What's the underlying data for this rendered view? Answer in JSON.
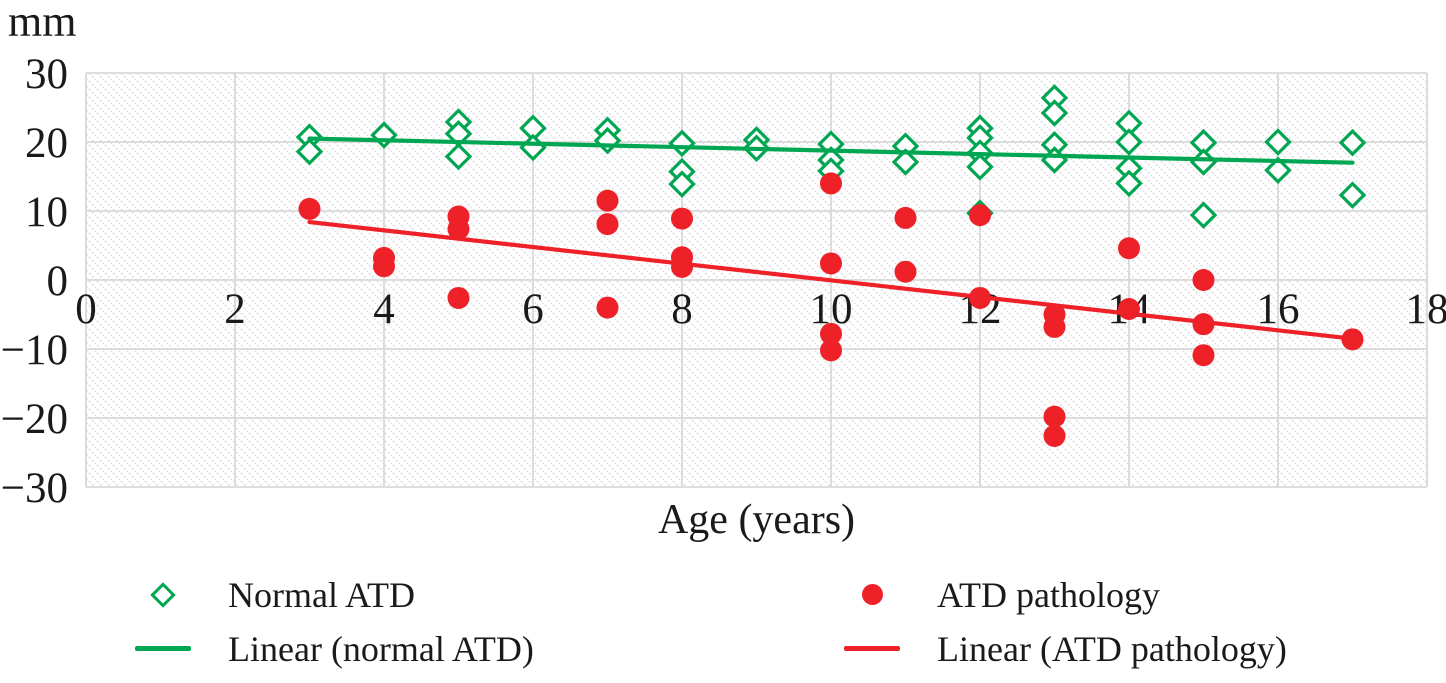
{
  "y_unit_label": "mm",
  "x_axis_title": "Age (years)",
  "chart_data": {
    "type": "scatter",
    "title": "",
    "xlabel": "Age (years)",
    "ylabel": "mm",
    "xlim": [
      0,
      18
    ],
    "ylim": [
      -30,
      30
    ],
    "x_ticks": [
      0,
      2,
      4,
      6,
      8,
      10,
      12,
      14,
      16,
      18
    ],
    "y_ticks": [
      30,
      20,
      10,
      0,
      -10,
      -20,
      -30
    ],
    "grid": true,
    "plot_background": "diagonal-hatch",
    "gridline_color": "#d9d9d9",
    "hatch_color": "#e3e3e3",
    "legend_position": "bottom",
    "series": [
      {
        "name": "Normal ATD",
        "marker": "open-diamond",
        "color": "#00a651",
        "points": [
          [
            3,
            20.7
          ],
          [
            3,
            18.6
          ],
          [
            4,
            21.0
          ],
          [
            5,
            22.9
          ],
          [
            5,
            21.2
          ],
          [
            5,
            17.9
          ],
          [
            6,
            22.0
          ],
          [
            6,
            19.2
          ],
          [
            7,
            21.7
          ],
          [
            7,
            20.2
          ],
          [
            8,
            19.8
          ],
          [
            8,
            15.7
          ],
          [
            8,
            13.9
          ],
          [
            9,
            20.3
          ],
          [
            9,
            19.1
          ],
          [
            10,
            19.7
          ],
          [
            10,
            17.4
          ],
          [
            10,
            15.8
          ],
          [
            11,
            19.4
          ],
          [
            11,
            17.1
          ],
          [
            12,
            22.0
          ],
          [
            12,
            20.6
          ],
          [
            12,
            18.4
          ],
          [
            12,
            16.4
          ],
          [
            12,
            9.7
          ],
          [
            13,
            26.4
          ],
          [
            13,
            24.2
          ],
          [
            13,
            19.6
          ],
          [
            13,
            17.4
          ],
          [
            14,
            22.7
          ],
          [
            14,
            20.0
          ],
          [
            14,
            16.2
          ],
          [
            14,
            14.0
          ],
          [
            15,
            19.9
          ],
          [
            15,
            17.1
          ],
          [
            15,
            9.4
          ],
          [
            16,
            20.0
          ],
          [
            16,
            15.9
          ],
          [
            17,
            19.9
          ],
          [
            17,
            12.3
          ]
        ]
      },
      {
        "name": "ATD pathology",
        "marker": "filled-circle",
        "color": "#ee2128",
        "points": [
          [
            3,
            10.3
          ],
          [
            4,
            3.2
          ],
          [
            4,
            2.0
          ],
          [
            5,
            9.2
          ],
          [
            5,
            7.4
          ],
          [
            5,
            -2.6
          ],
          [
            7,
            11.5
          ],
          [
            7,
            8.1
          ],
          [
            7,
            -4.0
          ],
          [
            8,
            8.9
          ],
          [
            8,
            3.3
          ],
          [
            8,
            1.9
          ],
          [
            10,
            14.0
          ],
          [
            10,
            2.4
          ],
          [
            10,
            -7.8
          ],
          [
            10,
            -10.2
          ],
          [
            11,
            9.0
          ],
          [
            11,
            1.2
          ],
          [
            12,
            9.4
          ],
          [
            12,
            -2.6
          ],
          [
            13,
            -5.0
          ],
          [
            13,
            -6.8
          ],
          [
            13,
            -19.8
          ],
          [
            13,
            -22.6
          ],
          [
            14,
            4.6
          ],
          [
            14,
            -4.2
          ],
          [
            15,
            0.0
          ],
          [
            15,
            -6.4
          ],
          [
            15,
            -10.9
          ],
          [
            17,
            -8.6
          ]
        ]
      }
    ],
    "trendlines": [
      {
        "name": "Linear (normal ATD)",
        "color": "#00a651",
        "x1": 3,
        "y1": 20.5,
        "x2": 17,
        "y2": 17.0
      },
      {
        "name": "Linear (ATD pathology)",
        "color": "#ee2128",
        "x1": 3,
        "y1": 8.4,
        "x2": 17,
        "y2": -8.5
      }
    ]
  },
  "legend": {
    "items": [
      {
        "label": "Normal ATD",
        "marker": "open-diamond",
        "color": "#00a651"
      },
      {
        "label": "Linear (normal ATD)",
        "marker": "line",
        "color": "#00a651"
      },
      {
        "label": "ATD pathology",
        "marker": "filled-circle",
        "color": "#ee2128"
      },
      {
        "label": "Linear (ATD pathology)",
        "marker": "line",
        "color": "#ee2128"
      }
    ]
  }
}
